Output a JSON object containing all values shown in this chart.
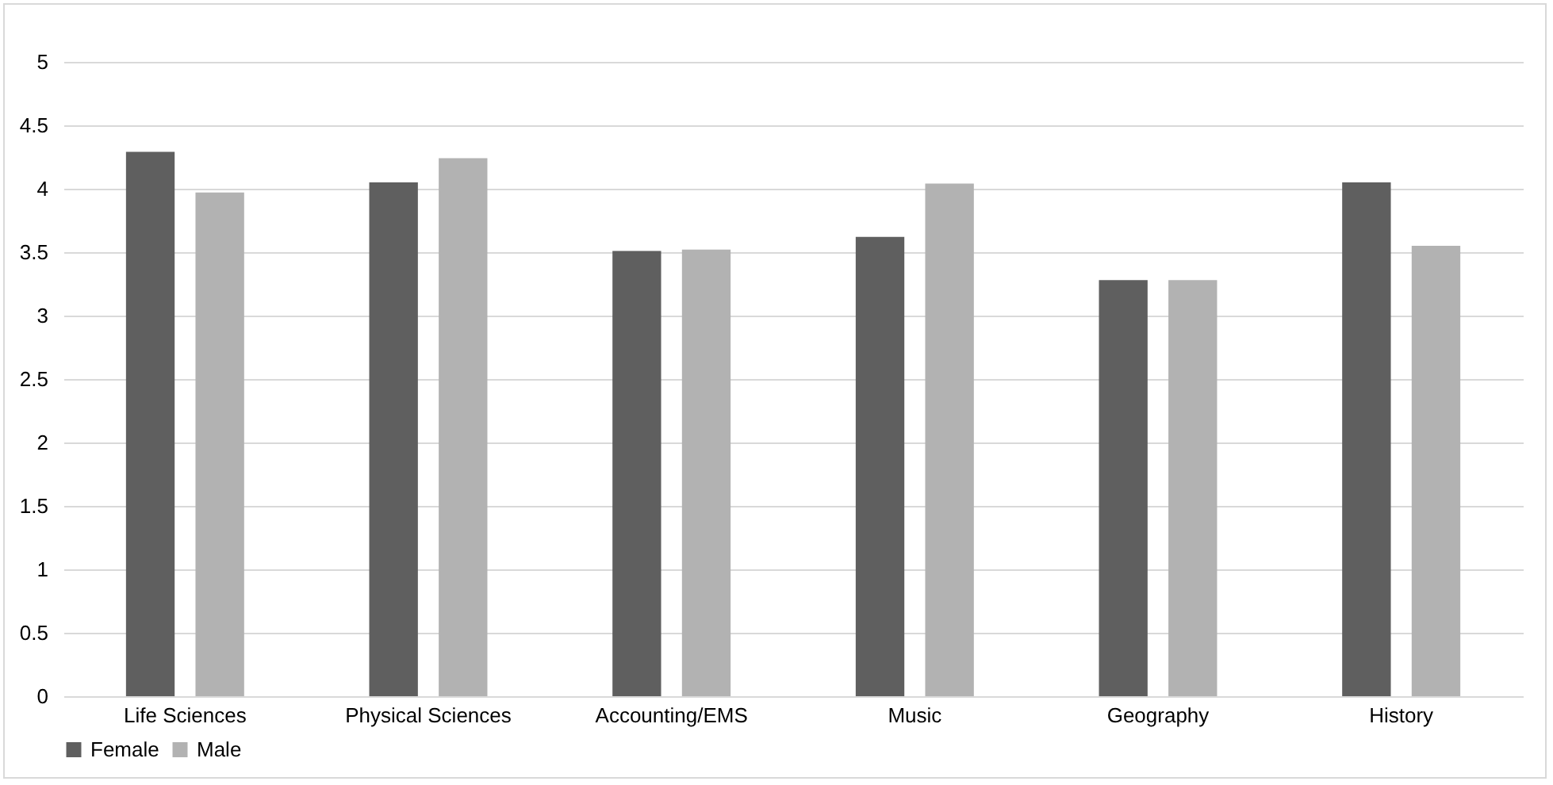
{
  "chart_data": {
    "type": "bar",
    "categories": [
      "Life Sciences",
      "Physical Sciences",
      "Accounting/EMS",
      "Music",
      "Geography",
      "History"
    ],
    "series": [
      {
        "name": "Female",
        "color": "#5f5f5f",
        "values": [
          4.29,
          4.05,
          3.51,
          3.62,
          3.28,
          4.05
        ]
      },
      {
        "name": "Male",
        "color": "#b2b2b2",
        "values": [
          3.97,
          4.24,
          3.52,
          4.04,
          3.28,
          3.55
        ]
      }
    ],
    "ylim": [
      0,
      5
    ],
    "yticks": [
      0,
      0.5,
      1,
      1.5,
      2,
      2.5,
      3,
      3.5,
      4,
      4.5,
      5
    ],
    "grid": "y",
    "legend": "bottom"
  }
}
